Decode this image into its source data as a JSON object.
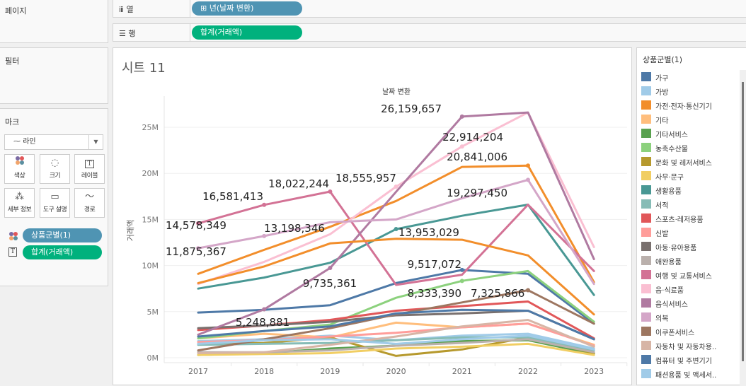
{
  "shelves": {
    "pages_label": "페이지",
    "filters_label": "필터",
    "marks_label": "마크",
    "columns": {
      "icon": "columns-icon",
      "label": "열",
      "pill": "⊞ 년(날짜 변환)"
    },
    "rows": {
      "icon": "rows-icon",
      "label": "행",
      "pill": "합계(거래액)"
    }
  },
  "marks": {
    "type": "라인",
    "buttons": [
      {
        "icon": "color-icon",
        "label": "색상"
      },
      {
        "icon": "size-icon",
        "label": "크기"
      },
      {
        "icon": "label-icon",
        "label": "레이블"
      },
      {
        "icon": "detail-icon",
        "label": "세부 정보"
      },
      {
        "icon": "tooltip-icon",
        "label": "도구 설명"
      },
      {
        "icon": "path-icon",
        "label": "경로"
      }
    ],
    "fields": [
      {
        "icon": "color-icon",
        "label": "상품군별(1)"
      },
      {
        "icon": "label-icon",
        "label": "합계(거래액)"
      }
    ]
  },
  "sheet": {
    "title": "시트 11"
  },
  "legend": {
    "title": "상품군별(1)",
    "items": [
      {
        "name": "가구",
        "color": "#4e79a7"
      },
      {
        "name": "가방",
        "color": "#a0cbe8"
      },
      {
        "name": "가전·전자·통신기기",
        "color": "#f28e2b"
      },
      {
        "name": "기타",
        "color": "#ffbe7d"
      },
      {
        "name": "기타서비스",
        "color": "#59a14f"
      },
      {
        "name": "농축수산물",
        "color": "#8cd17d"
      },
      {
        "name": "문화 및 레저서비스",
        "color": "#b6992d"
      },
      {
        "name": "사무·문구",
        "color": "#f1ce63"
      },
      {
        "name": "생활용품",
        "color": "#499894"
      },
      {
        "name": "서적",
        "color": "#86bcb6"
      },
      {
        "name": "스포츠·레저용품",
        "color": "#e15759"
      },
      {
        "name": "신발",
        "color": "#ff9d9a"
      },
      {
        "name": "아동·유아용품",
        "color": "#79706e"
      },
      {
        "name": "애완용품",
        "color": "#bab0ac"
      },
      {
        "name": "여행 및 교통서비스",
        "color": "#d37295"
      },
      {
        "name": "음·식료품",
        "color": "#fabfd2"
      },
      {
        "name": "음식서비스",
        "color": "#b07aa1"
      },
      {
        "name": "의복",
        "color": "#d4a6c8"
      },
      {
        "name": "이쿠폰서비스",
        "color": "#9d7660"
      },
      {
        "name": "자동차 및 자동차용..",
        "color": "#d7b5a6"
      },
      {
        "name": "컴퓨터 및 주변기기",
        "color": "#4e79a7"
      },
      {
        "name": "패션용품 및 액세서..",
        "color": "#a0cbe8"
      }
    ]
  },
  "chart_data": {
    "type": "line",
    "title": "",
    "xlabel": "날짜 변환",
    "ylabel": "거래액",
    "x": [
      "2017",
      "2018",
      "2019",
      "2020",
      "2021",
      "2022",
      "2023"
    ],
    "yticks": [
      "0M",
      "5M",
      "10M",
      "15M",
      "20M",
      "25M"
    ],
    "ylim": [
      0,
      28000000
    ],
    "grid": true,
    "legend": "right",
    "series": [
      {
        "name": "가구",
        "color": "#4e79a7",
        "values": [
          4900000,
          5200000,
          5700000,
          8100000,
          9517072,
          9100000,
          3700000
        ]
      },
      {
        "name": "가방",
        "color": "#a0cbe8",
        "values": [
          1800000,
          2000000,
          2400000,
          1900000,
          2400000,
          2600000,
          1000000
        ]
      },
      {
        "name": "가전·전자·통신기기",
        "color": "#f28e2b",
        "values": [
          9100000,
          11700000,
          14200000,
          17000000,
          20700000,
          20841006,
          8200000
        ]
      },
      {
        "name": "기타",
        "color": "#ffbe7d",
        "values": [
          2100000,
          2600000,
          2200000,
          3800000,
          3300000,
          3700000,
          1400000
        ]
      },
      {
        "name": "기타서비스",
        "color": "#59a14f",
        "values": [
          300000,
          500000,
          1000000,
          1300000,
          1800000,
          1900000,
          400000
        ]
      },
      {
        "name": "농축수산물",
        "color": "#8cd17d",
        "values": [
          2100000,
          2900000,
          3600000,
          6500000,
          8333390,
          9400000,
          3900000
        ]
      },
      {
        "name": "문화 및 레저서비스",
        "color": "#b6992d",
        "values": [
          1500000,
          1600000,
          2200000,
          200000,
          900000,
          2200000,
          500000
        ]
      },
      {
        "name": "사무·문구",
        "color": "#f1ce63",
        "values": [
          300000,
          400000,
          500000,
          1000000,
          1200000,
          1500000,
          300000
        ]
      },
      {
        "name": "생활용품",
        "color": "#499894",
        "values": [
          7500000,
          8700000,
          10300000,
          13953029,
          15400000,
          16600000,
          6800000
        ]
      },
      {
        "name": "서적",
        "color": "#86bcb6",
        "values": [
          1400000,
          1500000,
          1600000,
          1900000,
          2200000,
          2200000,
          800000
        ]
      },
      {
        "name": "스포츠·레저용품",
        "color": "#e15759",
        "values": [
          3000000,
          3500000,
          4100000,
          5100000,
          5600000,
          6100000,
          2100000
        ]
      },
      {
        "name": "신발",
        "color": "#ff9d9a",
        "values": [
          1700000,
          1900000,
          2300000,
          2700000,
          3300000,
          3700000,
          1300000
        ]
      },
      {
        "name": "아동·유아용품",
        "color": "#79706e",
        "values": [
          3200000,
          3500000,
          3900000,
          4600000,
          4800000,
          5100000,
          2000000
        ]
      },
      {
        "name": "애완용품",
        "color": "#bab0ac",
        "values": [
          600000,
          600000,
          800000,
          1300000,
          1600000,
          2000000,
          600000
        ]
      },
      {
        "name": "여행 및 교통서비스",
        "color": "#d37295",
        "values": [
          14578349,
          16581413,
          18022244,
          7900000,
          9000000,
          16600000,
          9400000
        ]
      },
      {
        "name": "음·식료품",
        "color": "#fabfd2",
        "values": [
          8000000,
          10400000,
          13400000,
          18555957,
          22914204,
          26600000,
          12000000
        ]
      },
      {
        "name": "음식서비스",
        "color": "#b07aa1",
        "values": [
          2500000,
          5248881,
          9735361,
          18000000,
          26159657,
          26600000,
          10700000
        ]
      },
      {
        "name": "의복",
        "color": "#d4a6c8",
        "values": [
          11875367,
          13198346,
          14700000,
          15000000,
          17300000,
          19297450,
          8000000
        ]
      },
      {
        "name": "이쿠폰서비스",
        "color": "#9d7660",
        "values": [
          800000,
          2000000,
          3200000,
          4700000,
          6000000,
          7325866,
          3700000
        ]
      },
      {
        "name": "자동차 및 자동차용..",
        "color": "#d7b5a6",
        "values": [
          500000,
          600000,
          1400000,
          2300000,
          3400000,
          4100000,
          1200000
        ]
      },
      {
        "name": "컴퓨터 및 주변기기",
        "color": "#4e79a7",
        "values": [
          2300000,
          2900000,
          3400000,
          4800000,
          5200000,
          5100000,
          2000000
        ]
      },
      {
        "name": "패션용품 및 액세서..",
        "color": "#a0cbe8",
        "values": [
          1500000,
          1900000,
          2000000,
          1500000,
          2000000,
          2400000,
          900000
        ]
      },
      {
        "name": "",
        "color": "#f28e2b",
        "values": [
          8100000,
          9900000,
          12400000,
          12900000,
          12800000,
          11100000,
          4700000
        ]
      }
    ],
    "labels": [
      {
        "series": "여행 및 교통서비스",
        "x": "2017",
        "text": "14,578,349"
      },
      {
        "series": "여행 및 교통서비스",
        "x": "2018",
        "text": "16,581,413"
      },
      {
        "series": "여행 및 교통서비스",
        "x": "2019",
        "text": "18,022,244"
      },
      {
        "series": "의복",
        "x": "2017",
        "text": "11,875,367"
      },
      {
        "series": "의복",
        "x": "2018",
        "text": "13,198,346"
      },
      {
        "series": "음식서비스",
        "x": "2018",
        "text": "5,248,881"
      },
      {
        "series": "음식서비스",
        "x": "2019",
        "text": "9,735,361"
      },
      {
        "series": "음·식료품",
        "x": "2020",
        "text": "18,555,957"
      },
      {
        "series": "생활용품",
        "x": "2020",
        "text": "13,953,029"
      },
      {
        "series": "음식서비스",
        "x": "2021",
        "text": "26,159,657"
      },
      {
        "series": "음·식료품",
        "x": "2021",
        "text": "22,914,204"
      },
      {
        "series": "가구",
        "x": "2021",
        "text": "9,517,072"
      },
      {
        "series": "농축수산물",
        "x": "2021",
        "text": "8,333,390"
      },
      {
        "series": "가전·전자·통신기기",
        "x": "2022",
        "text": "20,841,006"
      },
      {
        "series": "의복",
        "x": "2022",
        "text": "19,297,450"
      },
      {
        "series": "이쿠폰서비스",
        "x": "2022",
        "text": "7,325,866"
      }
    ]
  }
}
